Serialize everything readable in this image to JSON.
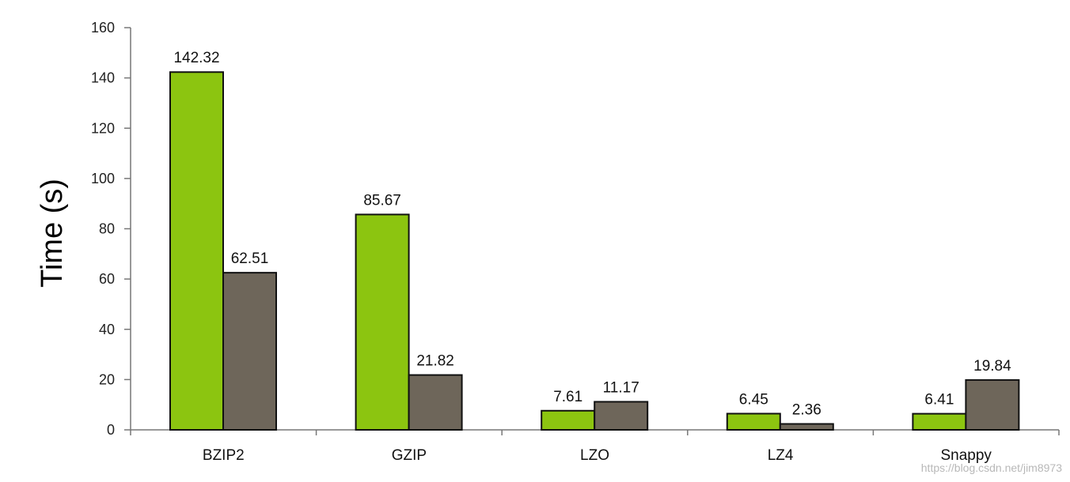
{
  "chart_data": {
    "type": "bar",
    "ylabel": "Time (s)",
    "xlabel": "",
    "ylim": [
      0,
      160
    ],
    "yticks": [
      0,
      20,
      40,
      60,
      80,
      100,
      120,
      140,
      160
    ],
    "categories": [
      "BZIP2",
      "GZIP",
      "LZO",
      "LZ4",
      "Snappy"
    ],
    "series": [
      {
        "values": [
          142.32,
          85.67,
          7.61,
          6.45,
          6.41
        ],
        "color": "#8cc510"
      },
      {
        "values": [
          62.51,
          21.82,
          11.17,
          2.36,
          19.84
        ],
        "color": "#6e665a"
      }
    ],
    "data_labels": [
      [
        "142.32",
        "85.67",
        "7.61",
        "6.45",
        "6.41"
      ],
      [
        "62.51",
        "21.82",
        "11.17",
        "2.36",
        "19.84"
      ]
    ],
    "grid": false
  },
  "watermark": "https://blog.csdn.net/jim8973"
}
